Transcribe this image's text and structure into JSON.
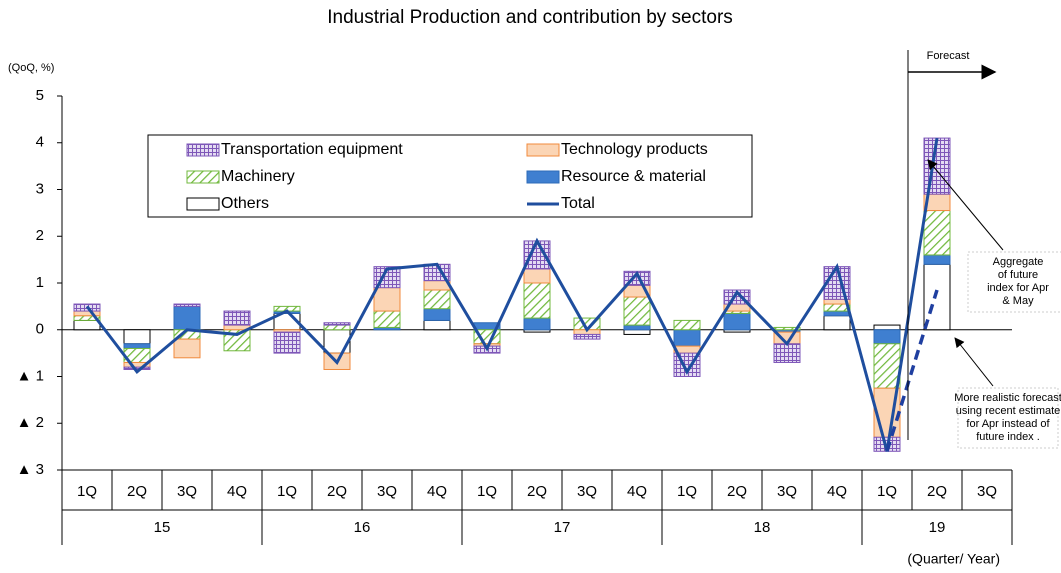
{
  "chart_data": {
    "type": "bar",
    "title": "Industrial Production and contribution by sectors",
    "y_unit_label": "(QoQ, %)",
    "x_axis_label": "(Quarter/ Year)",
    "categories": [
      "1Q",
      "2Q",
      "3Q",
      "4Q",
      "1Q",
      "2Q",
      "3Q",
      "4Q",
      "1Q",
      "2Q",
      "3Q",
      "4Q",
      "1Q",
      "2Q",
      "3Q",
      "4Q",
      "1Q",
      "2Q",
      "3Q"
    ],
    "x_groups": [
      "15",
      "15",
      "15",
      "15",
      "16",
      "16",
      "16",
      "16",
      "17",
      "17",
      "17",
      "17",
      "18",
      "18",
      "18",
      "18",
      "19",
      "19",
      "19"
    ],
    "ylim": [
      -3,
      5
    ],
    "yticks": [
      {
        "value": -3,
        "label": "▲ 3"
      },
      {
        "value": -2,
        "label": "▲ 2"
      },
      {
        "value": -1,
        "label": "▲ 1"
      },
      0,
      1,
      2,
      3,
      4,
      5
    ],
    "series": [
      {
        "name": "Others",
        "color": "#ffffff",
        "stroke": "#000000",
        "fill_style": "solid",
        "values": [
          0.2,
          -0.3,
          0,
          0,
          0.35,
          -0.5,
          0,
          0.2,
          0,
          -0.05,
          0,
          -0.1,
          0,
          -0.05,
          0,
          0.3,
          0.1,
          1.4,
          null
        ]
      },
      {
        "name": "Resource & material",
        "color": "#3f7fd0",
        "stroke": "#2e6bb8",
        "fill_style": "solid",
        "values": [
          0,
          -0.1,
          0.5,
          0,
          0.05,
          0,
          0.05,
          0.25,
          0.15,
          0.25,
          0,
          0.1,
          -0.35,
          0.35,
          -0.05,
          0.1,
          -0.3,
          0.2,
          null
        ]
      },
      {
        "name": "Machinery",
        "color": "#70b83c",
        "stroke": "#70b83c",
        "fill_style": "hatch",
        "values": [
          0.1,
          -0.3,
          -0.2,
          -0.45,
          0.1,
          0.1,
          0.35,
          0.4,
          -0.3,
          0.75,
          0.25,
          0.6,
          0.2,
          0.05,
          0.05,
          0.15,
          -0.95,
          0.95,
          null
        ]
      },
      {
        "name": "Technology products",
        "color": "#fbd5b5",
        "stroke": "#f08a3c",
        "fill_style": "solid",
        "values": [
          0.1,
          -0.1,
          -0.4,
          0.1,
          -0.05,
          -0.35,
          0.5,
          0.2,
          -0.05,
          0.3,
          -0.1,
          0.25,
          -0.15,
          0.15,
          -0.25,
          0.1,
          -1.05,
          0.35,
          null
        ]
      },
      {
        "name": "Transportation equipment",
        "color": "#7e57b8",
        "stroke": "#7e57b8",
        "fill_style": "grid",
        "values": [
          0.15,
          -0.05,
          0.05,
          0.3,
          -0.45,
          0.05,
          0.45,
          0.35,
          -0.15,
          0.6,
          -0.1,
          0.3,
          -0.5,
          0.3,
          -0.4,
          0.7,
          -0.3,
          1.2,
          null
        ]
      },
      {
        "name": "Total",
        "color": "#1f4e9e",
        "fill_style": "line",
        "values": [
          0.5,
          -0.9,
          0,
          -0.1,
          0.4,
          -0.7,
          1.3,
          1.4,
          -0.4,
          1.9,
          0,
          1.2,
          -0.9,
          0.8,
          -0.3,
          1.35,
          -2.6,
          4.1,
          null
        ]
      },
      {
        "color": "#1f3fa0",
        "fill_style": "dashed",
        "values": [
          null,
          null,
          null,
          null,
          null,
          null,
          null,
          null,
          null,
          null,
          null,
          null,
          null,
          null,
          null,
          null,
          -2.6,
          0.85,
          null
        ]
      }
    ],
    "annotations": {
      "forecast": "Forecast",
      "aggregate": [
        "Aggregate",
        "of future",
        "index for Apr",
        "& May"
      ],
      "realistic": [
        "More realistic forecast",
        "using recent estimate",
        "for Apr instead of",
        "future index ."
      ]
    }
  }
}
